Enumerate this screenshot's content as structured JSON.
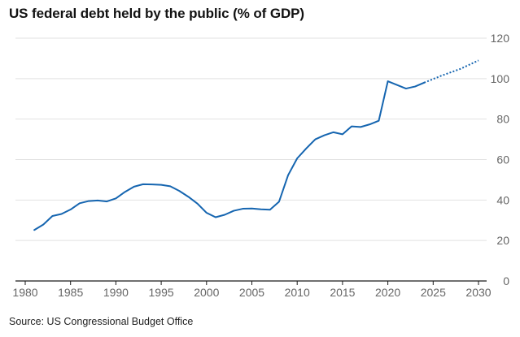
{
  "chart_data": {
    "type": "line",
    "title": "US federal debt held by the public (% of GDP)",
    "source": "Source: US Congressional Budget Office",
    "xlim": [
      1980,
      2030
    ],
    "ylim": [
      0,
      120
    ],
    "x_ticks": [
      1980,
      1985,
      1990,
      1995,
      2000,
      2005,
      2010,
      2015,
      2020,
      2025,
      2030
    ],
    "y_ticks": [
      0,
      20,
      40,
      60,
      80,
      100,
      120
    ],
    "grid": true,
    "y_axis_side": "right",
    "series": [
      {
        "style": "solid",
        "color": "#1565b0",
        "points": [
          [
            1981,
            25.2
          ],
          [
            1982,
            27.9
          ],
          [
            1983,
            32.1
          ],
          [
            1984,
            33.1
          ],
          [
            1985,
            35.3
          ],
          [
            1986,
            38.4
          ],
          [
            1987,
            39.5
          ],
          [
            1988,
            39.8
          ],
          [
            1989,
            39.3
          ],
          [
            1990,
            40.8
          ],
          [
            1991,
            44.0
          ],
          [
            1992,
            46.6
          ],
          [
            1993,
            47.8
          ],
          [
            1994,
            47.7
          ],
          [
            1995,
            47.5
          ],
          [
            1996,
            46.8
          ],
          [
            1997,
            44.5
          ],
          [
            1998,
            41.6
          ],
          [
            1999,
            38.2
          ],
          [
            2000,
            33.7
          ],
          [
            2001,
            31.5
          ],
          [
            2002,
            32.7
          ],
          [
            2003,
            34.7
          ],
          [
            2004,
            35.7
          ],
          [
            2005,
            35.8
          ],
          [
            2006,
            35.4
          ],
          [
            2007,
            35.2
          ],
          [
            2008,
            39.2
          ],
          [
            2009,
            52.3
          ],
          [
            2010,
            60.6
          ],
          [
            2011,
            65.5
          ],
          [
            2012,
            70.0
          ],
          [
            2013,
            72.0
          ],
          [
            2014,
            73.5
          ],
          [
            2015,
            72.5
          ],
          [
            2016,
            76.4
          ],
          [
            2017,
            76.1
          ],
          [
            2018,
            77.4
          ],
          [
            2019,
            79.2
          ],
          [
            2020,
            98.7
          ],
          [
            2021,
            96.9
          ],
          [
            2022,
            95.1
          ],
          [
            2023,
            96.1
          ],
          [
            2024,
            98.0
          ]
        ]
      },
      {
        "style": "dotted",
        "color": "#1565b0",
        "points": [
          [
            2024,
            98.0
          ],
          [
            2025,
            99.8
          ],
          [
            2026,
            101.6
          ],
          [
            2027,
            103.2
          ],
          [
            2028,
            104.8
          ],
          [
            2029,
            106.9
          ],
          [
            2030,
            109.0
          ]
        ]
      }
    ]
  }
}
